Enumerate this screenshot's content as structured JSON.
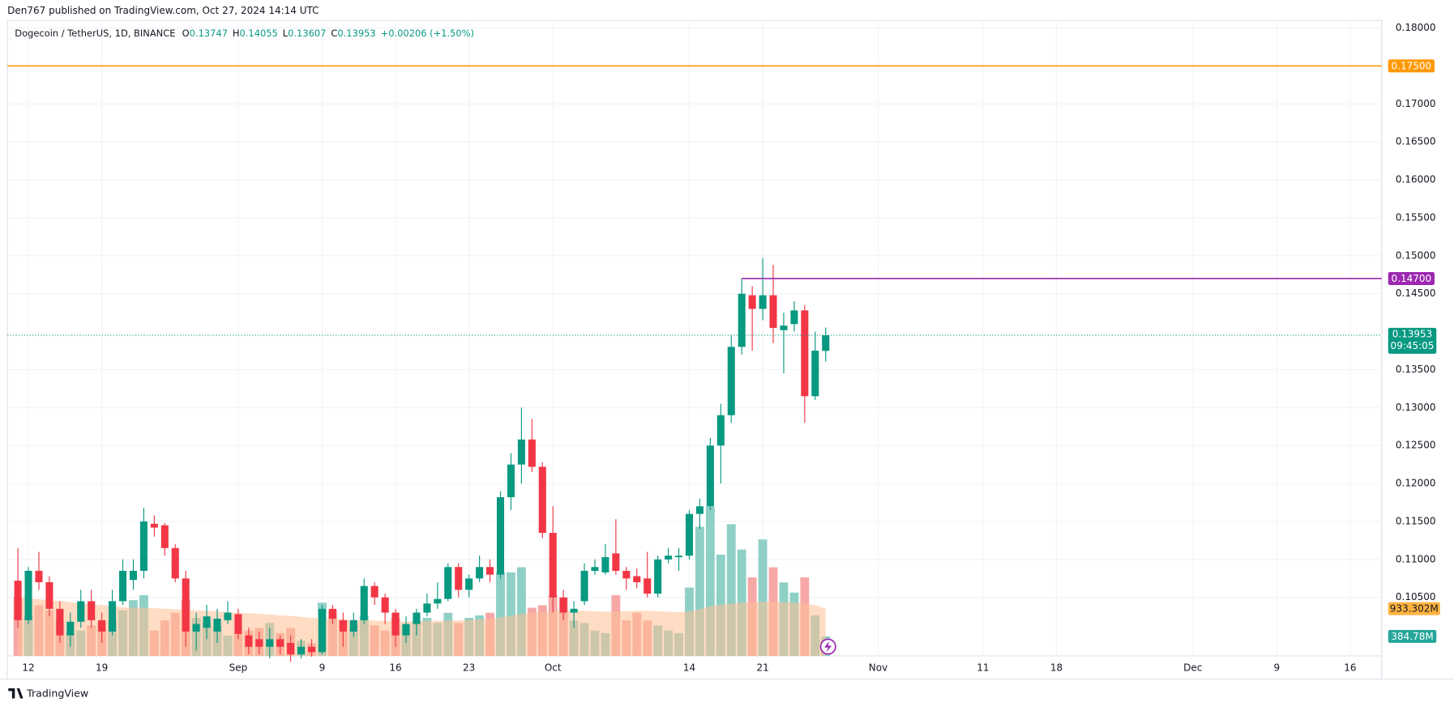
{
  "header": {
    "publisher": "Den767 published on TradingView.com, Oct 27, 2024 14:14 UTC"
  },
  "footer": {
    "brand": "TradingView"
  },
  "chart_data": {
    "type": "candlestick",
    "legend": {
      "symbol": "Dogecoin / TetherUS, 1D, BINANCE",
      "o_label": "O",
      "open": 0.13747,
      "h_label": "H",
      "high": 0.14055,
      "l_label": "L",
      "low": 0.13607,
      "c_label": "C",
      "close": 0.13953,
      "change": {
        "value": 0.00206,
        "label": "+0.00206"
      },
      "change_pct": {
        "value": 1.5,
        "label": "(+1.50%)"
      }
    },
    "x": [
      "2024-08-11",
      "2024-08-12",
      "2024-08-13",
      "2024-08-14",
      "2024-08-15",
      "2024-08-16",
      "2024-08-17",
      "2024-08-18",
      "2024-08-19",
      "2024-08-20",
      "2024-08-21",
      "2024-08-22",
      "2024-08-23",
      "2024-08-24",
      "2024-08-25",
      "2024-08-26",
      "2024-08-27",
      "2024-08-28",
      "2024-08-29",
      "2024-08-30",
      "2024-08-31",
      "2024-09-01",
      "2024-09-02",
      "2024-09-03",
      "2024-09-04",
      "2024-09-05",
      "2024-09-06",
      "2024-09-07",
      "2024-09-08",
      "2024-09-09",
      "2024-09-10",
      "2024-09-11",
      "2024-09-12",
      "2024-09-13",
      "2024-09-14",
      "2024-09-15",
      "2024-09-16",
      "2024-09-17",
      "2024-09-18",
      "2024-09-19",
      "2024-09-20",
      "2024-09-21",
      "2024-09-22",
      "2024-09-23",
      "2024-09-24",
      "2024-09-25",
      "2024-09-26",
      "2024-09-27",
      "2024-09-28",
      "2024-09-29",
      "2024-09-30",
      "2024-10-01",
      "2024-10-02",
      "2024-10-03",
      "2024-10-04",
      "2024-10-05",
      "2024-10-06",
      "2024-10-07",
      "2024-10-08",
      "2024-10-09",
      "2024-10-10",
      "2024-10-11",
      "2024-10-12",
      "2024-10-13",
      "2024-10-14",
      "2024-10-15",
      "2024-10-16",
      "2024-10-17",
      "2024-10-18",
      "2024-10-19",
      "2024-10-20",
      "2024-10-21",
      "2024-10-22",
      "2024-10-23",
      "2024-10-24",
      "2024-10-25",
      "2024-10-26",
      "2024-10-27"
    ],
    "open": [
      0.1072,
      0.102,
      0.1085,
      0.107,
      0.1035,
      0.1,
      0.1018,
      0.1045,
      0.102,
      0.1005,
      0.1045,
      0.1073,
      0.1085,
      0.1147,
      0.1145,
      0.1115,
      0.1075,
      0.1005,
      0.101,
      0.1005,
      0.102,
      0.1028,
      0.1,
      0.0995,
      0.0985,
      0.0995,
      0.099,
      0.0975,
      0.0985,
      0.0978,
      0.1035,
      0.102,
      0.1005,
      0.102,
      0.1065,
      0.105,
      0.103,
      0.1,
      0.1015,
      0.103,
      0.1042,
      0.1048,
      0.109,
      0.106,
      0.1075,
      0.109,
      0.108,
      0.1182,
      0.1225,
      0.1258,
      0.1222,
      0.1135,
      0.105,
      0.103,
      0.1045,
      0.1085,
      0.1083,
      0.1108,
      0.1085,
      0.1078,
      0.1075,
      0.1055,
      0.11,
      0.1103,
      0.1105,
      0.116,
      0.117,
      0.125,
      0.129,
      0.138,
      0.1448,
      0.143,
      0.1448,
      0.1402,
      0.141,
      0.1428,
      0.1315,
      0.13747
    ],
    "high": [
      0.1115,
      0.109,
      0.111,
      0.1078,
      0.1045,
      0.103,
      0.106,
      0.106,
      0.103,
      0.106,
      0.11,
      0.11,
      0.1168,
      0.1158,
      0.1148,
      0.112,
      0.1085,
      0.103,
      0.104,
      0.1035,
      0.1045,
      0.1035,
      0.101,
      0.1005,
      0.101,
      0.1,
      0.1,
      0.0995,
      0.0995,
      0.104,
      0.104,
      0.103,
      0.103,
      0.1075,
      0.107,
      0.1055,
      0.1035,
      0.1025,
      0.1035,
      0.1055,
      0.107,
      0.1095,
      0.1095,
      0.108,
      0.1105,
      0.11,
      0.119,
      0.124,
      0.13,
      0.1285,
      0.1228,
      0.117,
      0.106,
      0.1045,
      0.1095,
      0.11,
      0.112,
      0.1153,
      0.109,
      0.1088,
      0.111,
      0.1105,
      0.1115,
      0.1115,
      0.1165,
      0.118,
      0.126,
      0.1305,
      0.1395,
      0.147,
      0.146,
      0.1497,
      0.1488,
      0.1425,
      0.144,
      0.1435,
      0.14,
      0.14055
    ],
    "low": [
      0.101,
      0.1015,
      0.106,
      0.1025,
      0.099,
      0.0985,
      0.101,
      0.101,
      0.099,
      0.1,
      0.104,
      0.106,
      0.1075,
      0.113,
      0.1105,
      0.107,
      0.0985,
      0.098,
      0.0995,
      0.099,
      0.1015,
      0.0995,
      0.0975,
      0.0975,
      0.097,
      0.0975,
      0.0965,
      0.097,
      0.0972,
      0.0975,
      0.1015,
      0.0985,
      0.0998,
      0.1015,
      0.104,
      0.1015,
      0.0985,
      0.099,
      0.1,
      0.1025,
      0.1035,
      0.1045,
      0.105,
      0.105,
      0.107,
      0.107,
      0.1075,
      0.1165,
      0.12,
      0.1215,
      0.1128,
      0.103,
      0.102,
      0.101,
      0.104,
      0.108,
      0.108,
      0.108,
      0.106,
      0.1062,
      0.105,
      0.105,
      0.1095,
      0.1085,
      0.11,
      0.114,
      0.1165,
      0.12,
      0.128,
      0.137,
      0.1375,
      0.1415,
      0.1385,
      0.1345,
      0.14,
      0.128,
      0.131,
      0.13607
    ],
    "close": [
      0.102,
      0.1085,
      0.107,
      0.1035,
      0.1,
      0.1018,
      0.1045,
      0.102,
      0.1005,
      0.1045,
      0.1085,
      0.1085,
      0.115,
      0.1142,
      0.1115,
      0.1075,
      0.1005,
      0.1015,
      0.1025,
      0.1022,
      0.103,
      0.1002,
      0.0985,
      0.0985,
      0.0995,
      0.0985,
      0.0975,
      0.0985,
      0.0978,
      0.1035,
      0.1022,
      0.1005,
      0.102,
      0.1065,
      0.105,
      0.103,
      0.1,
      0.1015,
      0.103,
      0.1042,
      0.1048,
      0.109,
      0.106,
      0.1075,
      0.109,
      0.108,
      0.1182,
      0.1225,
      0.1258,
      0.1222,
      0.1135,
      0.105,
      0.103,
      0.1035,
      0.1085,
      0.109,
      0.1103,
      0.1085,
      0.1075,
      0.107,
      0.1055,
      0.11,
      0.1105,
      0.1105,
      0.116,
      0.117,
      0.125,
      0.129,
      0.138,
      0.145,
      0.143,
      0.1448,
      0.1405,
      0.1408,
      0.1428,
      0.1315,
      0.1375,
      0.13953
    ],
    "volume": [
      1150,
      800,
      1000,
      900,
      700,
      450,
      500,
      600,
      650,
      700,
      900,
      1100,
      1200,
      500,
      700,
      850,
      1100,
      750,
      650,
      600,
      400,
      450,
      500,
      550,
      650,
      450,
      550,
      300,
      250,
      1050,
      900,
      700,
      600,
      800,
      600,
      500,
      750,
      600,
      700,
      750,
      650,
      850,
      650,
      750,
      800,
      850,
      1650,
      1650,
      1750,
      950,
      1000,
      1200,
      1150,
      700,
      650,
      500,
      450,
      1200,
      700,
      850,
      700,
      600,
      500,
      450,
      1350,
      2550,
      2950,
      2000,
      2600,
      2100,
      1550,
      2300,
      1750,
      1450,
      1250,
      1550,
      800,
      384.78
    ],
    "volume_ma": [
      1150,
      1140,
      1120,
      1100,
      1080,
      1060,
      1040,
      1020,
      1000,
      980,
      960,
      950,
      950,
      940,
      930,
      920,
      910,
      900,
      890,
      880,
      860,
      850,
      840,
      830,
      820,
      800,
      790,
      770,
      750,
      740,
      730,
      720,
      710,
      705,
      700,
      690,
      680,
      680,
      680,
      690,
      690,
      700,
      700,
      710,
      720,
      730,
      760,
      790,
      830,
      850,
      860,
      880,
      890,
      890,
      890,
      880,
      870,
      880,
      880,
      890,
      890,
      880,
      870,
      860,
      880,
      920,
      980,
      1010,
      1030,
      1050,
      1060,
      1070,
      1070,
      1060,
      1050,
      1040,
      1000,
      933.302
    ],
    "volume_labels": {
      "last": {
        "value": 384.78,
        "label": "384.78M"
      },
      "ma": {
        "value": 933.302,
        "label": "933.302M"
      }
    },
    "up_color": "#089981",
    "down_color": "#f23645",
    "volume_up_color": "#8fd0c6",
    "volume_down_color": "#f6a8a7",
    "volume_ma_color": "#ffbf94",
    "xlim": [
      "2024-08-10",
      "2024-12-19"
    ],
    "xticks": [
      {
        "value": "2024-08-12",
        "label": "12"
      },
      {
        "value": "2024-08-19",
        "label": "19"
      },
      {
        "value": "2024-09-01",
        "label": "Sep"
      },
      {
        "value": "2024-09-09",
        "label": "9"
      },
      {
        "value": "2024-09-16",
        "label": "16"
      },
      {
        "value": "2024-09-23",
        "label": "23"
      },
      {
        "value": "2024-10-01",
        "label": "Oct"
      },
      {
        "value": "2024-10-14",
        "label": "14"
      },
      {
        "value": "2024-10-21",
        "label": "21"
      },
      {
        "value": "2024-11-01",
        "label": "Nov"
      },
      {
        "value": "2024-11-11",
        "label": "11"
      },
      {
        "value": "2024-11-18",
        "label": "18"
      },
      {
        "value": "2024-12-01",
        "label": "Dec"
      },
      {
        "value": "2024-12-09",
        "label": "9"
      },
      {
        "value": "2024-12-16",
        "label": "16"
      }
    ],
    "ylim": [
      0.0973,
      0.181
    ],
    "vlim": [
      0,
      12550
    ],
    "yticks": [
      {
        "value": 0.105,
        "label": "0.10500"
      },
      {
        "value": 0.11,
        "label": "0.11000"
      },
      {
        "value": 0.115,
        "label": "0.11500"
      },
      {
        "value": 0.12,
        "label": "0.12000"
      },
      {
        "value": 0.125,
        "label": "0.12500"
      },
      {
        "value": 0.13,
        "label": "0.13000"
      },
      {
        "value": 0.135,
        "label": "0.13500"
      },
      {
        "value": 0.145,
        "label": "0.14500"
      },
      {
        "value": 0.15,
        "label": "0.15000"
      },
      {
        "value": 0.155,
        "label": "0.15500"
      },
      {
        "value": 0.16,
        "label": "0.16000"
      },
      {
        "value": 0.165,
        "label": "0.16500"
      },
      {
        "value": 0.17,
        "label": "0.17000"
      },
      {
        "value": 0.18,
        "label": "0.18000"
      }
    ],
    "grid": true,
    "levels": [
      {
        "value": 0.175,
        "label": "0.17500",
        "color": "#ff9800",
        "start": "2024-08-10"
      },
      {
        "value": 0.147,
        "label": "0.14700",
        "color": "#9c27b0",
        "start": "2024-10-19"
      }
    ],
    "current_price": {
      "value": 0.13953,
      "label": "0.13953",
      "countdown": "09:45:05"
    }
  }
}
